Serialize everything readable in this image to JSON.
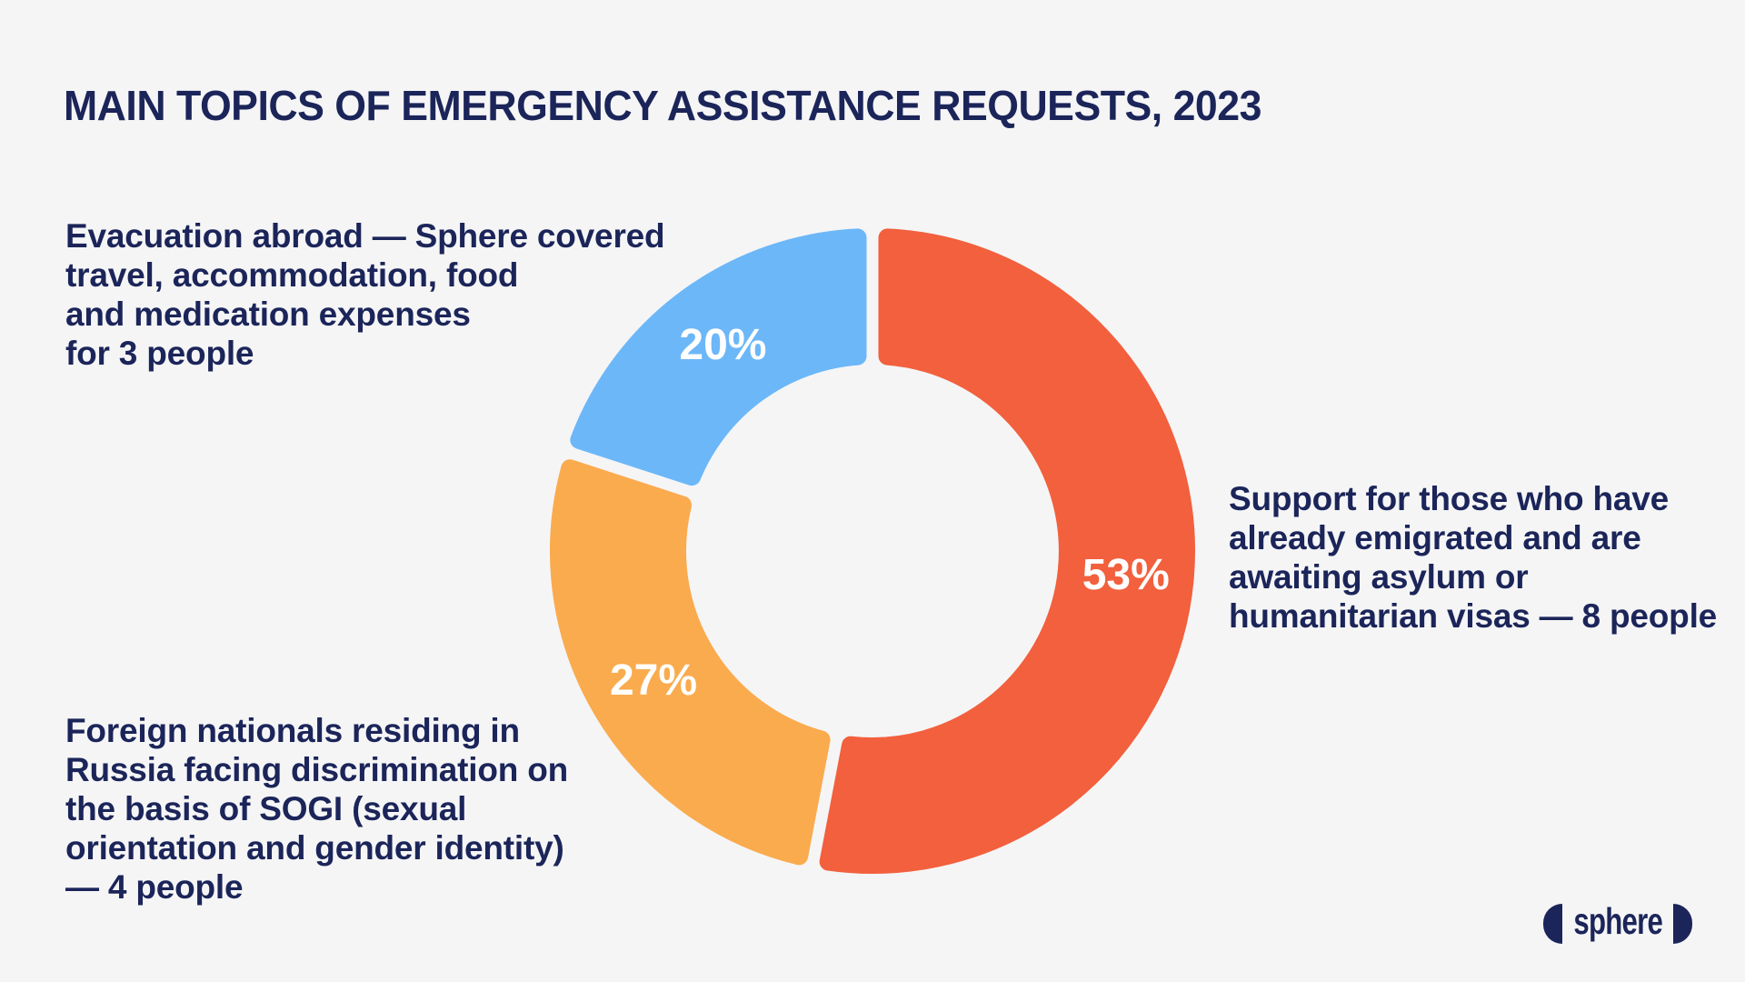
{
  "page": {
    "background_color": "#F5F5F6",
    "text_color": "#1B2559"
  },
  "title": "MAIN TOPICS OF EMERGENCY ASSISTANCE REQUESTS, 2023",
  "chart_data": {
    "type": "pie",
    "subtype": "donut",
    "title": "Main topics of emergency assistance requests, 2023",
    "start_angle_deg": 0,
    "direction": "clockwise",
    "label_color": "#FFFFFF",
    "segments": [
      {
        "name": "Support for those who have already emigrated and are awaiting asylum or humanitarian visas",
        "people": 8,
        "value_pct": 53,
        "pct_label": "53%",
        "color": "#F2603D"
      },
      {
        "name": "Foreign nationals residing in Russia facing discrimination on the basis of SOGI (sexual orientation and gender identity)",
        "people": 4,
        "value_pct": 27,
        "pct_label": "27%",
        "color": "#FAAB4E"
      },
      {
        "name": "Evacuation abroad — Sphere covered travel, accommodation, food and medication expenses",
        "people": 3,
        "value_pct": 20,
        "pct_label": "20%",
        "color": "#6CB7F8"
      }
    ]
  },
  "annotations": {
    "evacuation": {
      "text": "Evacuation abroad — Sphere covered\ntravel, accommodation, food\nand medication expenses\nfor 3 people"
    },
    "support": {
      "text": "Support for those who have\nalready emigrated and are\nawaiting asylum or\nhumanitarian visas — 8 people"
    },
    "foreign": {
      "text": "Foreign nationals residing in\nRussia facing discrimination on\nthe basis of SOGI (sexual\norientation and gender identity)\n— 4 people"
    }
  },
  "logo": {
    "text": "sphere"
  }
}
